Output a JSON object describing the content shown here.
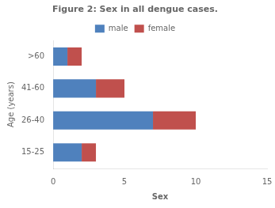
{
  "chart_data": {
    "type": "bar",
    "orientation": "horizontal",
    "stacked": true,
    "title": "Figure 2: Sex in all dengue cases.",
    "xlabel": "Sex",
    "ylabel": "Age (years)",
    "categories": [
      "15-25",
      "26-40",
      "41-60",
      ">60"
    ],
    "series": [
      {
        "name": "male",
        "color": "#4F81BD",
        "values": [
          2,
          7,
          3,
          1
        ]
      },
      {
        "name": "female",
        "color": "#C0504D",
        "values": [
          1,
          3,
          2,
          1
        ]
      }
    ],
    "xlim": [
      0,
      15
    ],
    "xticks": [
      0,
      5,
      10,
      15
    ],
    "grid": false,
    "legend": "top"
  }
}
